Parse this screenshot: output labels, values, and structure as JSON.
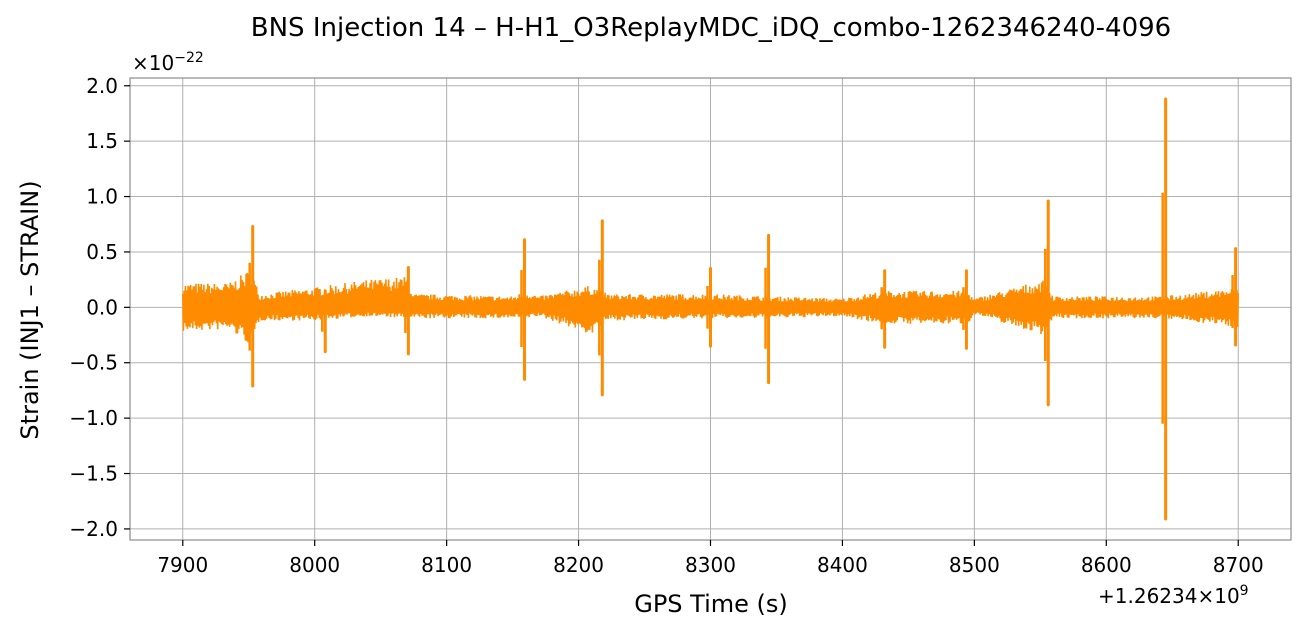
{
  "chart_data": {
    "type": "line",
    "title": "BNS Injection 14 – H-H1_O3ReplayMDC_iDQ_combo-1262346240-4096",
    "xlabel": "GPS Time (s)",
    "ylabel": "Strain (INJ1 – STRAIN)",
    "y_scale_label": "×10",
    "y_scale_exponent": "−22",
    "x_offset_label": "+1.26234×10",
    "x_offset_exponent": "9",
    "xlim": [
      7860,
      8740
    ],
    "ylim": [
      -2.1,
      2.07
    ],
    "x_ticks": [
      7900,
      8000,
      8100,
      8200,
      8300,
      8400,
      8500,
      8600,
      8700
    ],
    "x_tick_labels": [
      "7900",
      "8000",
      "8100",
      "8200",
      "8300",
      "8400",
      "8500",
      "8600",
      "8700"
    ],
    "y_ticks": [
      2.0,
      1.5,
      1.0,
      0.5,
      0.0,
      -0.5,
      -1.0,
      -1.5,
      -2.0
    ],
    "y_tick_labels": [
      "2.0",
      "1.5",
      "1.0",
      "0.5",
      "0.0",
      "−0.5",
      "−1.0",
      "−1.5",
      "−2.0"
    ],
    "grid": true,
    "series": [
      {
        "color": "#ff8c00",
        "x_range": [
          7900,
          8700
        ],
        "envelope": [
          {
            "x": 7900,
            "upper": 0.22,
            "lower": -0.22
          },
          {
            "x": 7935,
            "upper": 0.22,
            "lower": -0.2
          },
          {
            "x": 7952,
            "upper": 0.35,
            "lower": -0.35
          },
          {
            "x": 7958,
            "upper": 0.12,
            "lower": -0.12
          },
          {
            "x": 8000,
            "upper": 0.18,
            "lower": -0.12
          },
          {
            "x": 8040,
            "upper": 0.25,
            "lower": -0.08
          },
          {
            "x": 8070,
            "upper": 0.28,
            "lower": -0.1
          },
          {
            "x": 8075,
            "upper": 0.12,
            "lower": -0.1
          },
          {
            "x": 8150,
            "upper": 0.1,
            "lower": -0.1
          },
          {
            "x": 8160,
            "upper": 0.15,
            "lower": -0.1
          },
          {
            "x": 8170,
            "upper": 0.1,
            "lower": -0.08
          },
          {
            "x": 8210,
            "upper": 0.2,
            "lower": -0.25
          },
          {
            "x": 8222,
            "upper": 0.12,
            "lower": -0.12
          },
          {
            "x": 8300,
            "upper": 0.12,
            "lower": -0.1
          },
          {
            "x": 8345,
            "upper": 0.1,
            "lower": -0.1
          },
          {
            "x": 8400,
            "upper": 0.08,
            "lower": -0.08
          },
          {
            "x": 8430,
            "upper": 0.15,
            "lower": -0.15
          },
          {
            "x": 8495,
            "upper": 0.15,
            "lower": -0.15
          },
          {
            "x": 8500,
            "upper": 0.08,
            "lower": -0.06
          },
          {
            "x": 8552,
            "upper": 0.25,
            "lower": -0.25
          },
          {
            "x": 8560,
            "upper": 0.1,
            "lower": -0.1
          },
          {
            "x": 8640,
            "upper": 0.1,
            "lower": -0.1
          },
          {
            "x": 8660,
            "upper": 0.12,
            "lower": -0.12
          },
          {
            "x": 8700,
            "upper": 0.18,
            "lower": -0.18
          }
        ],
        "glitches": [
          {
            "x": 7953,
            "upper": 0.73,
            "lower": -0.71
          },
          {
            "x": 8008,
            "upper": 0.15,
            "lower": -0.4
          },
          {
            "x": 8071,
            "upper": 0.36,
            "lower": -0.42
          },
          {
            "x": 8159,
            "upper": 0.61,
            "lower": -0.65
          },
          {
            "x": 8218,
            "upper": 0.78,
            "lower": -0.79
          },
          {
            "x": 8300,
            "upper": 0.35,
            "lower": -0.35
          },
          {
            "x": 8344,
            "upper": 0.65,
            "lower": -0.68
          },
          {
            "x": 8432,
            "upper": 0.33,
            "lower": -0.36
          },
          {
            "x": 8494,
            "upper": 0.33,
            "lower": -0.37
          },
          {
            "x": 8556,
            "upper": 0.96,
            "lower": -0.88
          },
          {
            "x": 8645,
            "upper": 1.88,
            "lower": -1.91
          },
          {
            "x": 8698,
            "upper": 0.53,
            "lower": -0.34
          }
        ]
      }
    ]
  }
}
